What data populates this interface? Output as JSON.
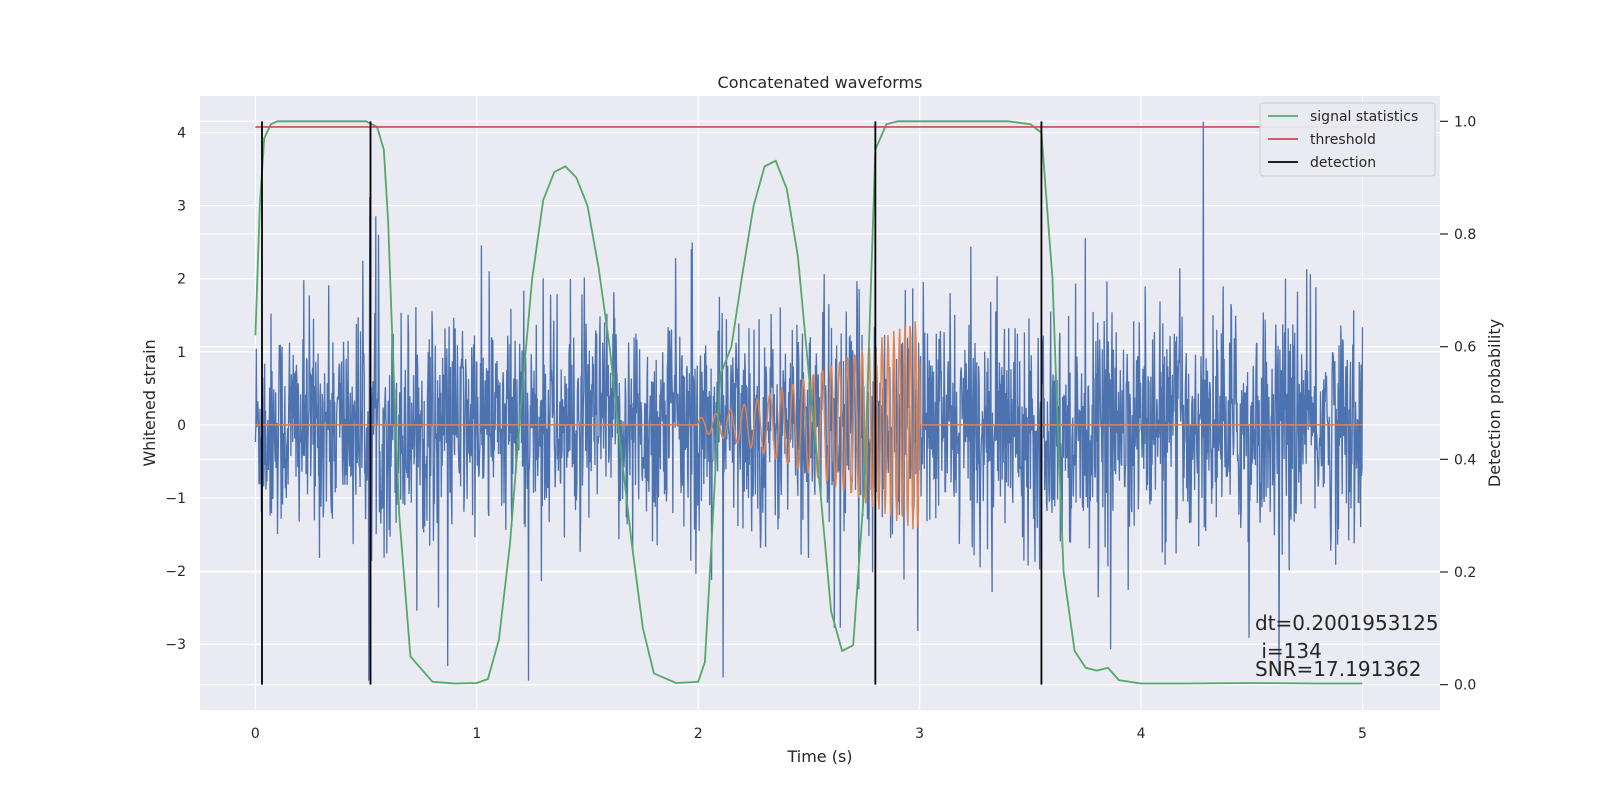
{
  "chart_data": {
    "type": "line",
    "title": "Concatenated waveforms",
    "xlabel": "Time (s)",
    "ylabel": "Whitened strain",
    "y2label": "Detection probability",
    "xlim": [
      -0.25,
      5.35
    ],
    "ylim": [
      -3.9,
      4.5
    ],
    "y2lim": [
      -0.045,
      1.045
    ],
    "x_ticks": [
      0,
      1,
      2,
      3,
      4,
      5
    ],
    "y_ticks": [
      -3,
      -2,
      -1,
      0,
      1,
      2,
      3,
      4
    ],
    "y2_ticks": [
      0.0,
      0.2,
      0.4,
      0.6,
      0.8,
      1.0
    ],
    "x_tick_labels": [
      "0",
      "1",
      "2",
      "3",
      "4",
      "5"
    ],
    "y_tick_labels": [
      "−3",
      "−2",
      "−1",
      "0",
      "1",
      "2",
      "3",
      "4"
    ],
    "y2_tick_labels": [
      "0.0",
      "0.2",
      "0.4",
      "0.6",
      "0.8",
      "1.0"
    ],
    "grid": true,
    "legend_position": "top-right",
    "background": "#eaeaf2",
    "series": [
      {
        "name": "",
        "kind": "noise",
        "axis": "left",
        "color": "#4c72b0",
        "x_range": [
          0,
          5
        ],
        "typical_range": [
          -1.6,
          1.6
        ],
        "extreme_range": [
          -3.5,
          4.2
        ]
      },
      {
        "name": "",
        "kind": "chirp",
        "axis": "left",
        "color": "#dd8452",
        "x_range": [
          0,
          5
        ],
        "chirp_start": 2.0,
        "chirp_end": 3.0,
        "amplitude_start": 0.1,
        "amplitude_end": 1.5,
        "frequency_start_hz": 15,
        "frequency_end_hz": 45
      },
      {
        "name": "signal statistics",
        "axis": "right",
        "color": "#55a868",
        "x": [
          0.0,
          0.02,
          0.04,
          0.07,
          0.1,
          0.2,
          0.3,
          0.4,
          0.5,
          0.55,
          0.58,
          0.6,
          0.62,
          0.65,
          0.7,
          0.8,
          0.9,
          1.0,
          1.05,
          1.1,
          1.15,
          1.2,
          1.25,
          1.3,
          1.35,
          1.4,
          1.45,
          1.5,
          1.55,
          1.6,
          1.65,
          1.7,
          1.75,
          1.8,
          1.9,
          2.0,
          2.03,
          2.06,
          2.1,
          2.15,
          2.2,
          2.25,
          2.3,
          2.35,
          2.4,
          2.45,
          2.5,
          2.55,
          2.6,
          2.65,
          2.7,
          2.75,
          2.8,
          2.85,
          2.9,
          3.0,
          3.2,
          3.4,
          3.5,
          3.55,
          3.6,
          3.62,
          3.65,
          3.7,
          3.75,
          3.8,
          3.85,
          3.9,
          4.0,
          4.2,
          4.5,
          4.8,
          5.0
        ],
        "y": [
          0.62,
          0.85,
          0.97,
          0.995,
          1.0,
          1.0,
          1.0,
          1.0,
          1.0,
          0.99,
          0.95,
          0.82,
          0.6,
          0.3,
          0.05,
          0.005,
          0.002,
          0.003,
          0.01,
          0.08,
          0.25,
          0.5,
          0.72,
          0.86,
          0.91,
          0.92,
          0.9,
          0.85,
          0.74,
          0.6,
          0.42,
          0.25,
          0.1,
          0.02,
          0.003,
          0.005,
          0.04,
          0.25,
          0.55,
          0.6,
          0.73,
          0.85,
          0.92,
          0.93,
          0.88,
          0.76,
          0.55,
          0.35,
          0.13,
          0.06,
          0.07,
          0.35,
          0.95,
          0.995,
          1.0,
          1.0,
          1.0,
          1.0,
          0.995,
          0.98,
          0.72,
          0.5,
          0.2,
          0.06,
          0.03,
          0.025,
          0.03,
          0.008,
          0.002,
          0.002,
          0.003,
          0.002,
          0.002
        ]
      },
      {
        "name": "threshold",
        "axis": "right",
        "color": "#c44e52",
        "x": [
          0.0,
          5.0
        ],
        "y": [
          0.99,
          0.99
        ]
      },
      {
        "name": "detection",
        "axis": "right",
        "color": "#000000",
        "vlines_x": [
          0.03,
          0.52,
          2.8,
          3.55
        ],
        "ymin": 0.0,
        "ymax": 1.0
      }
    ],
    "legend": [
      {
        "label": "signal statistics",
        "color": "#55a868"
      },
      {
        "label": "threshold",
        "color": "#c44e52"
      },
      {
        "label": "detection",
        "color": "#000000"
      }
    ],
    "annotations": [
      "dt=0.2001953125",
      " i=134",
      "SNR=17.191362"
    ]
  }
}
